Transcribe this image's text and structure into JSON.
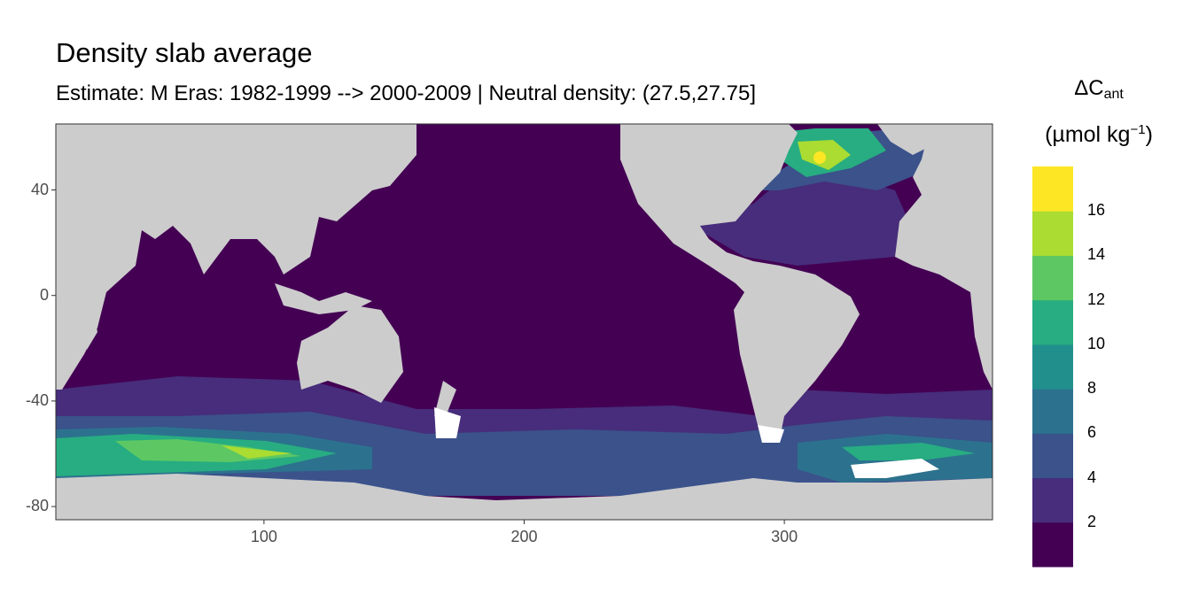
{
  "title": "Density slab average",
  "subtitle": "Estimate: M Eras: 1982-1999 --> 2000-2009 | Neutral density: (27.5,27.75]",
  "legend": {
    "title_main": "ΔC",
    "title_sub": "ant",
    "unit_open": "(µmol kg",
    "unit_sup": "−1",
    "unit_close": ")",
    "labels": [
      "2",
      "4",
      "6",
      "8",
      "10",
      "12",
      "14",
      "16"
    ],
    "colors": [
      "#440154",
      "#472D7B",
      "#3B528B",
      "#2C728E",
      "#21908C",
      "#27AD81",
      "#5DC863",
      "#AADC32",
      "#FDE725"
    ]
  },
  "colors": {
    "land": "#CCCCCC",
    "ocean_background": "#440154",
    "no_data": "#FFFFFF"
  },
  "chart_data": {
    "type": "heatmap",
    "title": "Density slab average",
    "subtitle": "Estimate: M Eras: 1982-1999 --> 2000-2009 | Neutral density: (27.5,27.75]",
    "x_ticks": [
      "100",
      "200",
      "300"
    ],
    "y_ticks": [
      "40",
      "0",
      "-40",
      "-80"
    ],
    "xlim": [
      20,
      380
    ],
    "ylim": [
      -85,
      65
    ],
    "breaks": [
      2,
      4,
      6,
      8,
      10,
      12,
      14,
      16
    ],
    "colorscale": "viridis (binned)",
    "grid": false,
    "legend_position": "right"
  }
}
